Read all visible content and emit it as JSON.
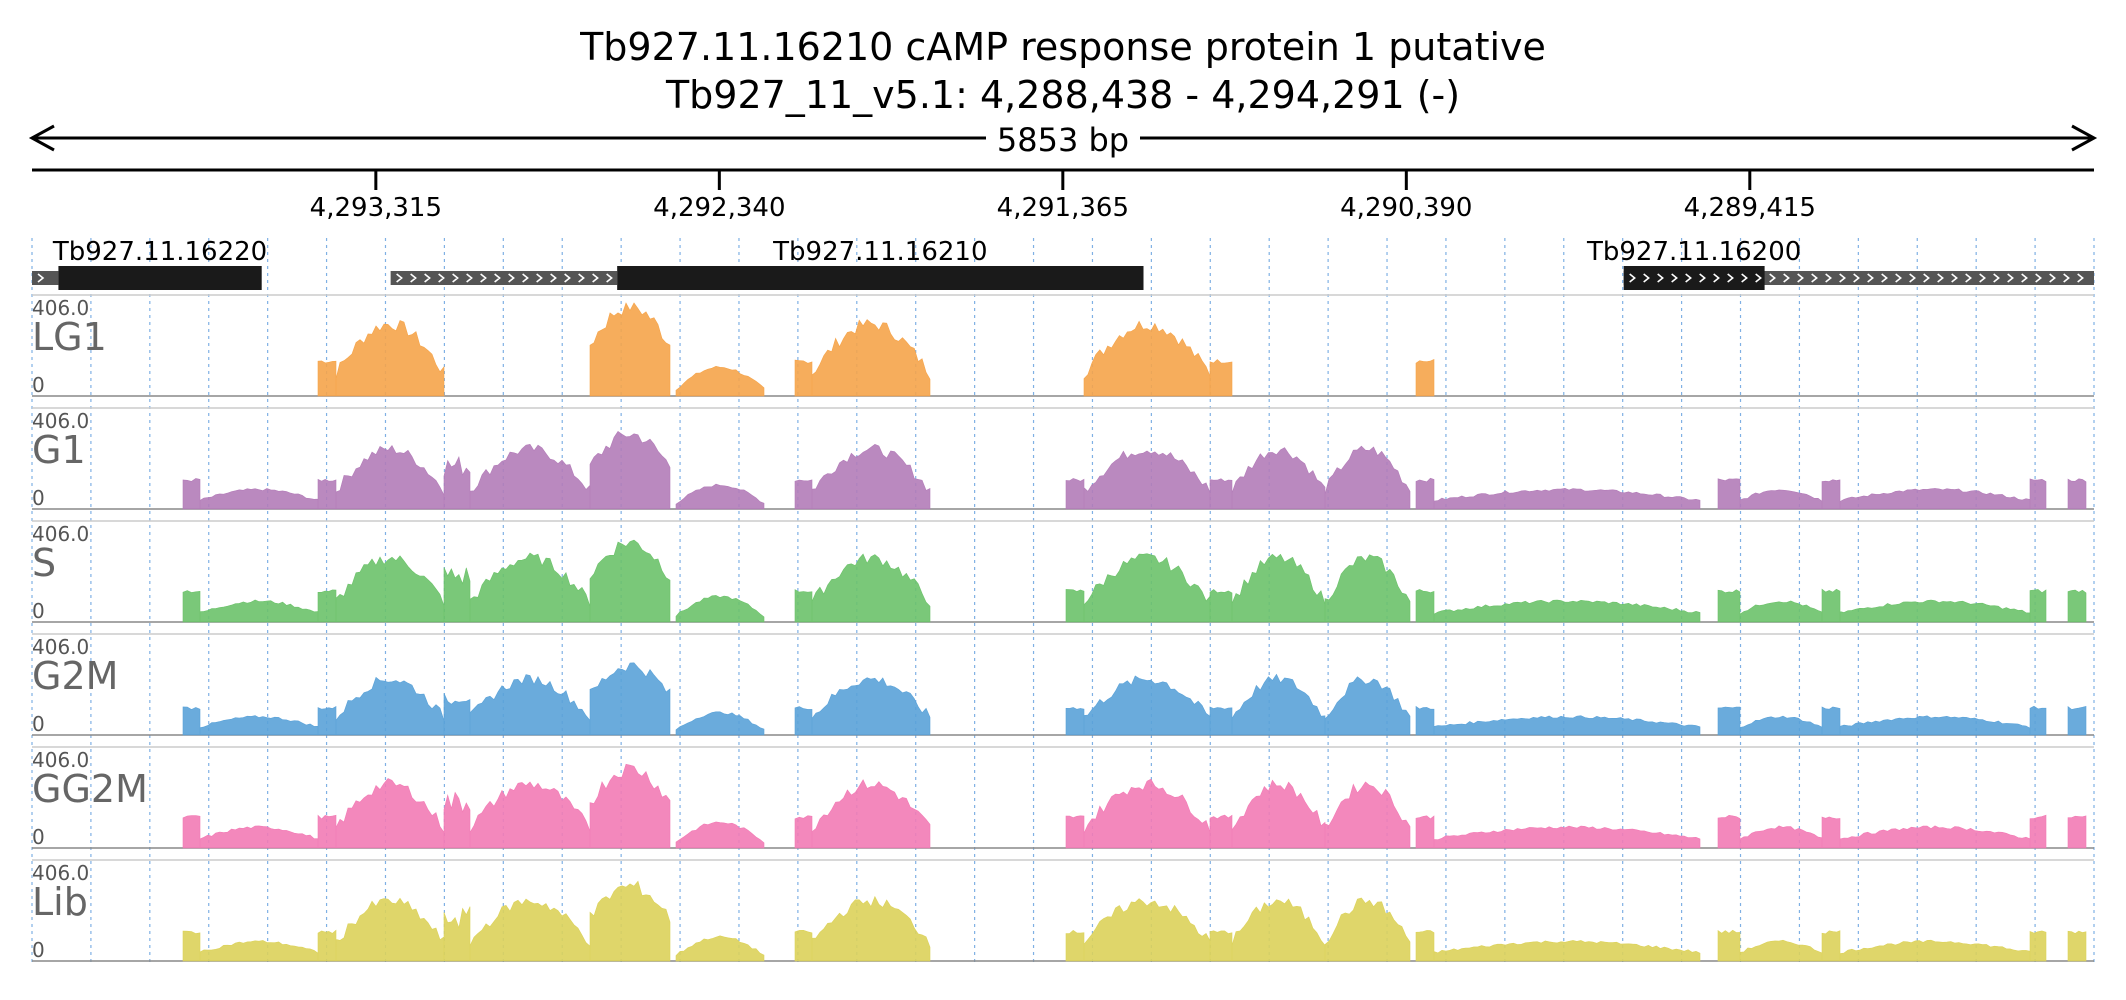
{
  "title": {
    "line1": "Tb927.11.16210  cAMP response protein 1  putative",
    "line2": "Tb927_11_v5.1: 4,288,438 - 4,294,291 (-)"
  },
  "span_label": "5853 bp",
  "region": {
    "start": 4288438,
    "end": 4294291,
    "strand": "-"
  },
  "ruler_ticks": [
    4293315,
    4292340,
    4291365,
    4290390,
    4289415
  ],
  "ruler_tick_labels": [
    "4,293,315",
    "4,292,340",
    "4,291,365",
    "4,290,390",
    "4,289,415"
  ],
  "genes": [
    {
      "id": "Tb927.11.16220",
      "utr": [
        4294216,
        4294291
      ],
      "cds": [
        4293639,
        4294216
      ]
    },
    {
      "id": "Tb927.11.16210",
      "utr": [
        4292630,
        4293273
      ],
      "cds": [
        4291136,
        4292630
      ]
    },
    {
      "id": "Tb927.11.16200",
      "utr": [
        4288438,
        4289773
      ],
      "cds": [
        4289373,
        4289773
      ]
    }
  ],
  "tracks": [
    {
      "name": "LG1",
      "color": "#f5a44a",
      "max_label": "406.0",
      "min_label": "0"
    },
    {
      "name": "G1",
      "color": "#b37cb8",
      "max_label": "406.0",
      "min_label": "0"
    },
    {
      "name": "S",
      "color": "#6cc26a",
      "max_label": "406.0",
      "min_label": "0"
    },
    {
      "name": "G2M",
      "color": "#5aa2d8",
      "max_label": "406.0",
      "min_label": "0"
    },
    {
      "name": "GG2M",
      "color": "#f27bb5",
      "max_label": "406.0",
      "min_label": "0"
    },
    {
      "name": "Lib",
      "color": "#dcd25a",
      "max_label": "406.0",
      "min_label": "0"
    }
  ],
  "colors": {
    "gene_body": "#1a1a1a",
    "utr": "#555555",
    "grid": "#4a90d9",
    "axis": "#000000"
  }
}
